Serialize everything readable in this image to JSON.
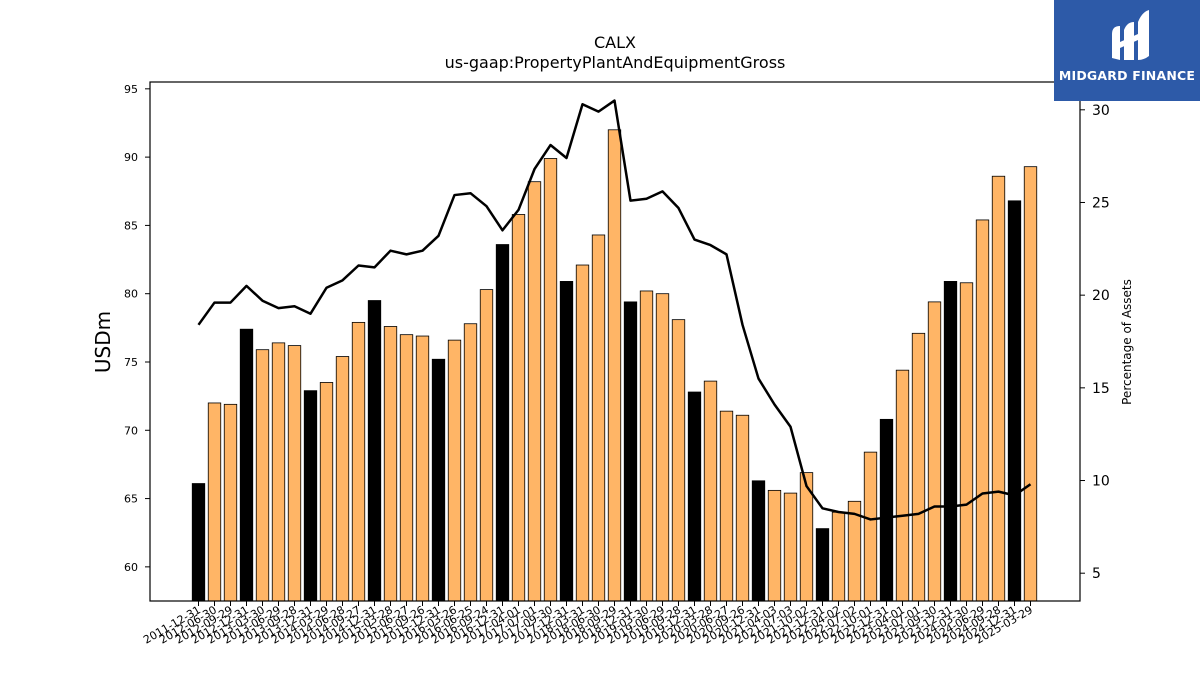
{
  "chart_data": {
    "type": "bar",
    "title": "CALX",
    "subtitle": "us-gaap:PropertyPlantAndEquipmentGross",
    "ylabel": "USDm",
    "y2label": "Percentage of Assets",
    "ylim": [
      57.5,
      95.5
    ],
    "y2lim": [
      3.5,
      31.5
    ],
    "yticks": [
      60,
      65,
      70,
      75,
      80,
      85,
      90,
      95
    ],
    "y2ticks": [
      5,
      10,
      15,
      20,
      25,
      30
    ],
    "grid": false,
    "colors": {
      "annual": "#000000",
      "quarterly": "#ffb566",
      "line": "#000000"
    },
    "categories": [
      "2011-12-31",
      "2012-06-30",
      "2012-09-29",
      "2012-12-31",
      "2013-03-30",
      "2013-06-29",
      "2013-09-28",
      "2013-12-31",
      "2014-03-29",
      "2014-06-28",
      "2014-09-27",
      "2014-12-31",
      "2015-03-28",
      "2015-06-27",
      "2015-09-26",
      "2015-12-31",
      "2016-03-26",
      "2016-06-25",
      "2016-09-24",
      "2016-12-31",
      "2017-04-01",
      "2017-07-01",
      "2017-09-30",
      "2017-12-31",
      "2018-03-31",
      "2018-06-30",
      "2018-09-29",
      "2018-12-31",
      "2019-03-30",
      "2019-06-29",
      "2019-09-28",
      "2019-12-31",
      "2020-03-28",
      "2020-06-27",
      "2020-09-26",
      "2020-12-31",
      "2021-04-03",
      "2021-07-03",
      "2021-10-02",
      "2021-12-31",
      "2022-04-02",
      "2022-07-02",
      "2022-10-01",
      "2022-12-31",
      "2023-04-01",
      "2023-07-01",
      "2023-09-30",
      "2023-12-31",
      "2024-03-30",
      "2024-06-29",
      "2024-09-28",
      "2024-12-31",
      "2025-03-29"
    ],
    "annual": [
      true,
      false,
      false,
      true,
      false,
      false,
      false,
      true,
      false,
      false,
      false,
      true,
      false,
      false,
      false,
      true,
      false,
      false,
      false,
      true,
      false,
      false,
      false,
      true,
      false,
      false,
      false,
      true,
      false,
      false,
      false,
      true,
      false,
      false,
      false,
      true,
      false,
      false,
      false,
      true,
      false,
      false,
      false,
      true,
      false,
      false,
      false,
      true,
      false,
      false,
      false,
      true,
      false
    ],
    "series": [
      {
        "name": "USDm",
        "type": "bar",
        "values": [
          66.1,
          72.0,
          71.9,
          77.4,
          75.9,
          76.4,
          76.2,
          72.9,
          73.5,
          75.4,
          77.9,
          79.5,
          77.6,
          77.0,
          76.9,
          75.2,
          76.6,
          77.8,
          80.3,
          83.6,
          85.8,
          88.2,
          89.9,
          80.9,
          82.1,
          84.3,
          92.0,
          79.4,
          80.2,
          80.0,
          78.1,
          72.8,
          73.6,
          71.4,
          71.1,
          66.3,
          65.6,
          65.4,
          66.9,
          62.8,
          64.0,
          64.8,
          68.4,
          70.8,
          74.4,
          77.1,
          79.4,
          80.9,
          80.8,
          85.4,
          88.6,
          86.8,
          89.3
        ]
      },
      {
        "name": "Percentage of Assets",
        "type": "line",
        "axis": "right",
        "values": [
          18.4,
          19.6,
          19.6,
          20.5,
          19.7,
          19.3,
          19.4,
          19.0,
          20.4,
          20.8,
          21.6,
          21.5,
          22.4,
          22.2,
          22.4,
          23.2,
          25.4,
          25.5,
          24.8,
          23.5,
          24.6,
          26.8,
          28.1,
          27.4,
          30.3,
          29.9,
          30.5,
          25.1,
          25.2,
          25.6,
          24.7,
          23.0,
          22.7,
          22.2,
          18.4,
          15.5,
          14.1,
          12.9,
          9.7,
          8.5,
          8.3,
          8.2,
          7.9,
          8.0,
          8.1,
          8.2,
          8.6,
          8.6,
          8.7,
          9.3,
          9.4,
          9.2,
          9.8
        ]
      }
    ]
  },
  "logo": {
    "text": "MIDGARD FINANCE"
  }
}
